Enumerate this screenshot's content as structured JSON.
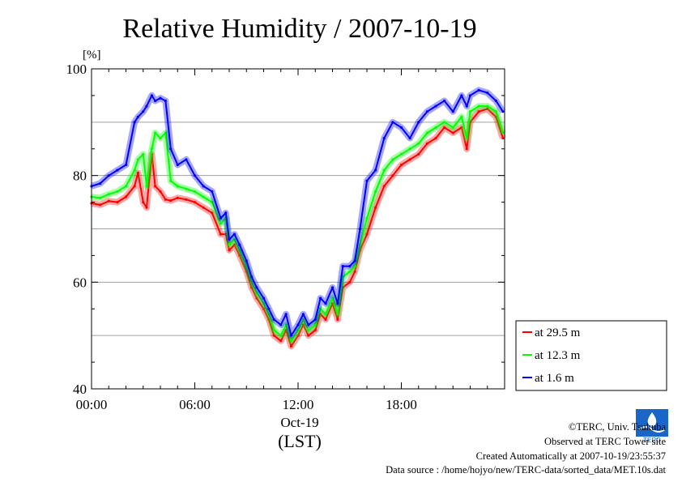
{
  "chart_data": {
    "type": "line",
    "title": "Relative Humidity / 2007-10-19",
    "ylabel": "[%]",
    "xlabel": "(LST)",
    "date_label": "Oct-19",
    "ylim": [
      40,
      100
    ],
    "xlim": [
      0,
      24
    ],
    "y_ticks": [
      "40",
      "60",
      "80",
      "100"
    ],
    "y_tick_values": [
      40,
      60,
      80,
      100
    ],
    "x_ticks": [
      "00:00",
      "06:00",
      "12:00",
      "18:00"
    ],
    "x_tick_values": [
      0,
      6,
      12,
      18
    ],
    "grid": true,
    "legend_position": "right",
    "x_hours": [
      0,
      0.5,
      1,
      1.5,
      2,
      2.5,
      2.7,
      3,
      3.2,
      3.5,
      3.7,
      4,
      4.3,
      4.6,
      5,
      5.5,
      6,
      6.5,
      7,
      7.5,
      7.8,
      8,
      8.3,
      8.6,
      9,
      9.3,
      9.6,
      10,
      10.3,
      10.6,
      11,
      11.3,
      11.6,
      12,
      12.3,
      12.6,
      13,
      13.3,
      13.6,
      14,
      14.3,
      14.6,
      15,
      15.3,
      15.6,
      16,
      16.5,
      17,
      17.5,
      18,
      18.5,
      19,
      19.5,
      20,
      20.5,
      21,
      21.5,
      21.8,
      22,
      22.5,
      23,
      23.5,
      23.9
    ],
    "series": [
      {
        "name": "at 29.5 m",
        "color": "#ff0000",
        "values": [
          74.8,
          74.5,
          75.2,
          75,
          76,
          78,
          80.5,
          75,
          74,
          84,
          78,
          77,
          75.5,
          75.3,
          75.8,
          75.5,
          75,
          74,
          73,
          69,
          69,
          66,
          67,
          65,
          62,
          59,
          57,
          55,
          53,
          50,
          49,
          51,
          48,
          50,
          52,
          50,
          51,
          54,
          53,
          56,
          53,
          59,
          60,
          62,
          66,
          69,
          74,
          78,
          80,
          82,
          83,
          84,
          86,
          87,
          89,
          88,
          89,
          85,
          90,
          92,
          92.5,
          91,
          87
        ]
      },
      {
        "name": "at 12.3 m",
        "color": "#00ff00",
        "values": [
          76,
          75.8,
          76.5,
          77,
          78,
          81,
          83,
          84,
          78,
          85,
          88,
          87,
          88,
          79,
          78,
          77.5,
          77,
          76,
          75,
          71,
          72,
          67,
          68,
          66,
          63,
          60,
          58,
          56,
          54,
          51,
          50,
          52,
          49,
          51,
          53,
          51,
          52,
          55,
          54,
          57,
          54,
          61,
          62,
          63,
          67,
          72,
          77,
          81,
          83,
          84,
          85,
          86,
          88,
          89,
          90,
          89,
          91,
          87,
          92,
          93,
          93,
          92,
          88
        ]
      },
      {
        "name": "at 1.6 m",
        "color": "#0000ff",
        "values": [
          78,
          78.5,
          80,
          81,
          82,
          90,
          91,
          92,
          93,
          95,
          94,
          94.5,
          94,
          85,
          82,
          83,
          80,
          78,
          77,
          72,
          73,
          68,
          69,
          67,
          64,
          61,
          59,
          57,
          55,
          53,
          52,
          54,
          50,
          52,
          54,
          52,
          53,
          57,
          56,
          59,
          56,
          63,
          63,
          64,
          70,
          79,
          81,
          87,
          90,
          89,
          87,
          90,
          92,
          93,
          94,
          92,
          95,
          93,
          95,
          96,
          95.5,
          94,
          92
        ]
      }
    ]
  },
  "legend": {
    "items": [
      "at 29.5 m",
      "at 12.3 m",
      "at 1.6 m"
    ]
  },
  "footer": {
    "copyright": "©TERC, Univ. Tsukuba",
    "observed": "Observed at TERC Tower site",
    "created": "Created Automatically at 2007-10-19/23:55:37",
    "source": "Data source : /home/hojyo/new/TERC-data/sorted_data/MET.10s.dat"
  },
  "logo": {
    "text": "TERC",
    "color": "#1a66c8"
  }
}
